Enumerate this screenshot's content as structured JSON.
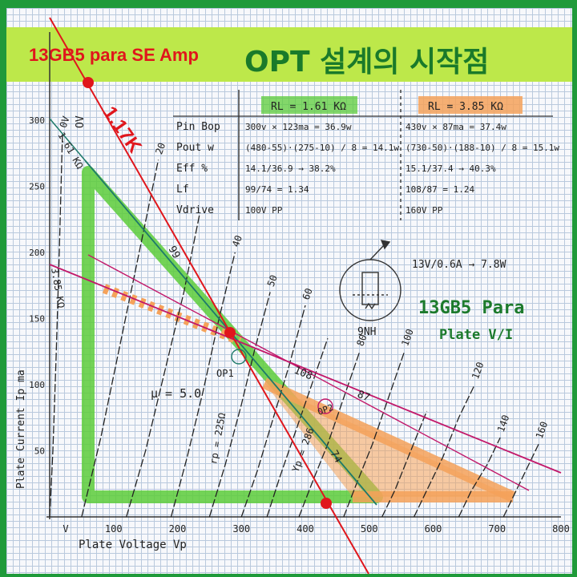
{
  "banner": {
    "title_left": "13GB5 para SE Amp",
    "title_right": "OPT 설계의 시작점"
  },
  "tube": {
    "name": "13GB5 Para",
    "subtitle": "Plate V/I",
    "heater": "13V/0.6A → 7.8W",
    "pin_label": "9NH"
  },
  "table": {
    "header_a": "RL = 1.61 KΩ",
    "header_b": "RL = 3.85 KΩ",
    "rows": [
      {
        "label": "Pin Bop",
        "a": "300v × 123ma = 36.9w",
        "b": "430v × 87ma = 37.4w"
      },
      {
        "label": "Pout  w",
        "a": "(480-55)·(275-10) / 8 = 14.1w",
        "b": "(730-50)·(188-10) / 8 = 15.1w"
      },
      {
        "label": "Eff  %",
        "a": "14.1/36.9 → 38.2%",
        "b": "15.1/37.4 → 40.3%"
      },
      {
        "label": "Lf",
        "a": "99/74 = 1.34",
        "b": "108/87 = 1.24"
      },
      {
        "label": "Vdrive",
        "a": "100V PP",
        "b": "160V PP"
      }
    ]
  },
  "annotations": {
    "load_red": "1.17K",
    "load_161": "1.61 KΩ",
    "load_385": "3.85 KΩ",
    "mu": "μ = 5.0",
    "rp": "rp = 225Ω",
    "op1": "OP1",
    "op2": "OP2",
    "v99": "99",
    "v74": "74",
    "v108": "108",
    "v87": "87",
    "yp286": "Yp = 286",
    "ov": "OV"
  },
  "colors": {
    "green_load": "#5ccc3a",
    "orange_load": "#f5a25a",
    "red_line": "#e0161c",
    "magenta": "#c2186a",
    "teal": "#1e7a6a",
    "banner": "#bde84a",
    "frame": "#1f9a3a"
  },
  "chart_data": {
    "type": "line",
    "xlabel": "Plate Voltage  Vp",
    "ylabel": "Plate Current  Ip  ma",
    "xlim": [
      0,
      800
    ],
    "ylim": [
      0,
      300
    ],
    "x_ticks": [
      "V",
      "100",
      "200",
      "300",
      "400",
      "500",
      "600",
      "700",
      "800"
    ],
    "y_ticks": [
      "50",
      "100",
      "150",
      "200",
      "250",
      "300"
    ],
    "grid": true,
    "grid_curve_labels": [
      "0V",
      "20",
      "40",
      "50",
      "60",
      "80",
      "100",
      "120",
      "140",
      "160"
    ],
    "grid_curves": [
      {
        "name": "0V",
        "points": [
          [
            0,
            0
          ],
          [
            5,
            50
          ],
          [
            10,
            120
          ],
          [
            15,
            200
          ],
          [
            20,
            290
          ]
        ]
      },
      {
        "name": "20",
        "points": [
          [
            50,
            0
          ],
          [
            80,
            60
          ],
          [
            110,
            130
          ],
          [
            140,
            200
          ],
          [
            170,
            270
          ]
        ]
      },
      {
        "name": "",
        "points": [
          [
            120,
            0
          ],
          [
            150,
            50
          ],
          [
            180,
            110
          ],
          [
            210,
            170
          ],
          [
            235,
            230
          ]
        ]
      },
      {
        "name": "40",
        "points": [
          [
            190,
            0
          ],
          [
            215,
            45
          ],
          [
            240,
            95
          ],
          [
            265,
            150
          ],
          [
            290,
            200
          ]
        ]
      },
      {
        "name": "50",
        "points": [
          [
            250,
            0
          ],
          [
            275,
            40
          ],
          [
            300,
            85
          ],
          [
            320,
            125
          ],
          [
            345,
            170
          ]
        ]
      },
      {
        "name": "60",
        "points": [
          [
            300,
            0
          ],
          [
            325,
            35
          ],
          [
            350,
            75
          ],
          [
            375,
            115
          ],
          [
            400,
            160
          ]
        ]
      },
      {
        "name": "",
        "points": [
          [
            340,
            0
          ],
          [
            360,
            30
          ],
          [
            385,
            65
          ],
          [
            410,
            100
          ],
          [
            435,
            135
          ]
        ]
      },
      {
        "name": "80",
        "points": [
          [
            390,
            0
          ],
          [
            410,
            25
          ],
          [
            435,
            55
          ],
          [
            460,
            90
          ],
          [
            485,
            125
          ]
        ]
      },
      {
        "name": "100",
        "points": [
          [
            460,
            0
          ],
          [
            480,
            25
          ],
          [
            505,
            55
          ],
          [
            530,
            90
          ],
          [
            555,
            125
          ]
        ]
      },
      {
        "name": "",
        "points": [
          [
            520,
            0
          ],
          [
            540,
            20
          ],
          [
            565,
            50
          ],
          [
            590,
            80
          ]
        ]
      },
      {
        "name": "120",
        "points": [
          [
            570,
            0
          ],
          [
            590,
            20
          ],
          [
            615,
            45
          ],
          [
            640,
            75
          ],
          [
            665,
            100
          ]
        ]
      },
      {
        "name": "140",
        "points": [
          [
            640,
            0
          ],
          [
            660,
            20
          ],
          [
            685,
            40
          ],
          [
            705,
            60
          ]
        ]
      },
      {
        "name": "160",
        "points": [
          [
            710,
            0
          ],
          [
            730,
            20
          ],
          [
            750,
            40
          ],
          [
            765,
            55
          ]
        ]
      }
    ],
    "load_lines": [
      {
        "name": "1.61 KΩ",
        "points": [
          [
            40,
            275
          ],
          [
            485,
            10
          ]
        ]
      },
      {
        "name": "3.85 KΩ",
        "points": [
          [
            0,
            190
          ],
          [
            730,
            10
          ]
        ]
      },
      {
        "name": "1.17K",
        "points": [
          [
            0,
            370
          ],
          [
            430,
            10
          ]
        ]
      }
    ],
    "operating_points": [
      {
        "name": "OP1",
        "x": 300,
        "y": 123
      },
      {
        "name": "OP2",
        "x": 430,
        "y": 87
      }
    ]
  }
}
